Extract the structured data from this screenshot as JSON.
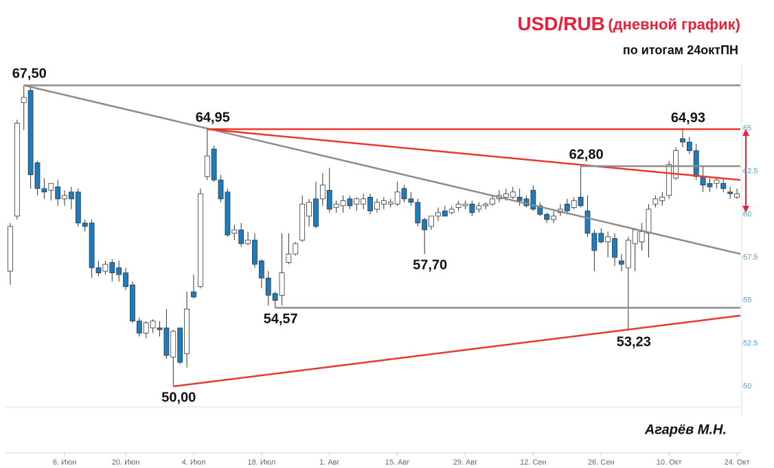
{
  "chart_data": {
    "type": "candlestick",
    "title": "USD/RUB",
    "title_note": "(дневной график)",
    "subtitle": "по итогам 24октПН",
    "author": "Агарёв М.Н.",
    "categories": [
      null,
      null,
      null,
      null,
      null,
      null,
      null,
      null,
      "6. Июн",
      null,
      null,
      null,
      null,
      null,
      null,
      null,
      null,
      "20. Июн",
      null,
      null,
      null,
      null,
      null,
      null,
      null,
      null,
      null,
      "4. Июл",
      null,
      null,
      null,
      null,
      null,
      null,
      null,
      null,
      null,
      "18. Июл",
      null,
      null,
      null,
      null,
      null,
      null,
      null,
      null,
      null,
      "1. Авг",
      null,
      null,
      null,
      null,
      null,
      null,
      null,
      null,
      null,
      "15. Авг",
      null,
      null,
      null,
      null,
      null,
      null,
      null,
      null,
      null,
      "29. Авг",
      null,
      null,
      null,
      null,
      null,
      null,
      null,
      null,
      null,
      "12. Сен",
      null,
      null,
      null,
      null,
      null,
      null,
      null,
      null,
      null,
      "26. Сен",
      null,
      null,
      null,
      null,
      null,
      null,
      null,
      null,
      null,
      "10. Окт",
      null,
      null,
      null,
      null,
      null,
      null,
      null,
      null,
      null,
      "24. Окт"
    ],
    "open": [
      56.7,
      59.9,
      66.5,
      67.2,
      63.0,
      61.5,
      61.4,
      61.6,
      60.9,
      61.3,
      61.3,
      59.5,
      59.5,
      56.9,
      56.7,
      57.2,
      56.9,
      56.6,
      55.9,
      53.8,
      53.1,
      53.4,
      53.4,
      53.4,
      51.7,
      53.4,
      51.9,
      55.5,
      55.8,
      62.2,
      63.8,
      62.0,
      61.3,
      58.9,
      59.1,
      58.3,
      58.5,
      57.3,
      56.3,
      55.4,
      55.3,
      57.2,
      57.7,
      58.5,
      59.9,
      60.9,
      60.9,
      61.4,
      60.4,
      60.5,
      60.9,
      60.6,
      60.6,
      61.0,
      60.3,
      60.6,
      60.6,
      60.6,
      61.5,
      60.9,
      60.7,
      59.7,
      59.3,
      59.9,
      60.2,
      60.1,
      60.4,
      60.5,
      60.6,
      60.3,
      60.5,
      60.6,
      60.9,
      61.0,
      61.0,
      61.0,
      60.9,
      61.4,
      60.5,
      60.0,
      59.7,
      60.1,
      60.6,
      60.4,
      61.0,
      60.2,
      58.9,
      58.9,
      58.4,
      58.6,
      57.3,
      56.9,
      58.3,
      58.4,
      58.9,
      60.6,
      60.8,
      61.1,
      62.1,
      64.4,
      64.2,
      63.7,
      62.2,
      61.8,
      61.8,
      61.8,
      61.3,
      61.0
    ],
    "high": [
      59.5,
      65.5,
      67.5,
      67.5,
      63.1,
      62.1,
      61.8,
      62.0,
      61.4,
      61.6,
      61.5,
      59.7,
      59.7,
      57.3,
      57.3,
      57.4,
      57.3,
      56.9,
      56.1,
      54.0,
      53.8,
      53.9,
      53.8,
      54.5,
      53.3,
      53.4,
      55.5,
      56.5,
      61.5,
      64.95,
      64.0,
      62.3,
      61.5,
      59.4,
      59.5,
      59.0,
      58.9,
      57.4,
      56.7,
      55.5,
      58.9,
      58.9,
      58.4,
      61.1,
      60.9,
      61.9,
      62.4,
      62.7,
      60.8,
      61.1,
      61.1,
      61.0,
      61.2,
      61.2,
      60.9,
      61.0,
      60.9,
      61.9,
      61.7,
      61.3,
      60.9,
      59.8,
      59.9,
      60.4,
      60.5,
      60.5,
      60.8,
      60.8,
      60.8,
      60.7,
      60.7,
      61.1,
      61.4,
      61.5,
      61.6,
      61.5,
      61.1,
      61.7,
      60.7,
      60.1,
      60.2,
      60.6,
      60.9,
      61.0,
      62.8,
      61.1,
      59.1,
      59.2,
      59.0,
      58.9,
      57.7,
      58.7,
      59.2,
      59.5,
      60.6,
      61.1,
      61.3,
      63.1,
      63.9,
      64.93,
      64.5,
      64.1,
      62.8,
      62.1,
      62.1,
      62.1,
      61.6,
      61.5
    ],
    "low": [
      55.9,
      59.7,
      64.9,
      61.5,
      61.1,
      60.9,
      60.8,
      60.5,
      60.5,
      60.3,
      59.3,
      59.0,
      56.3,
      56.4,
      56.5,
      56.1,
      56.1,
      55.6,
      53.7,
      52.9,
      52.8,
      53.1,
      52.9,
      51.6,
      50.0,
      51.3,
      51.1,
      55.1,
      55.7,
      62.0,
      61.9,
      60.7,
      58.7,
      58.5,
      58.1,
      58.2,
      56.9,
      55.7,
      54.7,
      54.57,
      54.7,
      57.1,
      57.6,
      58.4,
      59.3,
      59.2,
      60.5,
      60.1,
      60.1,
      60.1,
      60.3,
      60.2,
      60.3,
      60.0,
      60.1,
      60.3,
      60.4,
      60.5,
      60.7,
      60.5,
      59.3,
      57.7,
      59.1,
      59.6,
      59.9,
      60.0,
      60.2,
      60.3,
      59.9,
      60.1,
      60.3,
      60.5,
      60.7,
      60.8,
      60.9,
      60.5,
      60.4,
      60.2,
      59.9,
      59.5,
      59.5,
      59.9,
      60.0,
      60.3,
      60.4,
      58.7,
      56.7,
      58.3,
      57.5,
      57.0,
      56.7,
      53.23,
      56.7,
      57.9,
      57.5,
      60.4,
      60.5,
      60.9,
      62.0,
      63.9,
      63.5,
      62.0,
      61.3,
      61.3,
      61.5,
      61.3,
      60.9,
      60.9
    ],
    "close": [
      59.3,
      65.3,
      66.8,
      62.3,
      61.5,
      61.3,
      61.8,
      60.9,
      61.1,
      60.9,
      59.5,
      59.3,
      56.9,
      56.6,
      57.1,
      56.6,
      56.5,
      55.8,
      53.8,
      53.1,
      53.7,
      53.8,
      53.3,
      51.8,
      53.2,
      51.4,
      54.5,
      55.2,
      61.2,
      63.4,
      62.0,
      60.9,
      58.8,
      59.1,
      58.3,
      58.5,
      57.1,
      56.3,
      55.3,
      55.0,
      56.6,
      57.7,
      58.3,
      60.6,
      60.7,
      59.3,
      61.7,
      60.3,
      60.6,
      60.8,
      60.5,
      60.9,
      60.9,
      60.2,
      60.7,
      60.8,
      60.7,
      61.3,
      60.9,
      60.7,
      59.5,
      59.1,
      59.9,
      60.1,
      59.9,
      60.3,
      60.6,
      60.6,
      60.1,
      60.5,
      60.6,
      60.9,
      61.1,
      61.2,
      61.3,
      60.8,
      60.5,
      60.3,
      60.0,
      59.7,
      59.9,
      60.3,
      60.2,
      60.8,
      60.5,
      58.9,
      57.9,
      58.4,
      58.7,
      57.5,
      57.1,
      58.5,
      59.1,
      59.0,
      60.3,
      60.9,
      61.0,
      62.9,
      63.7,
      64.2,
      63.7,
      62.2,
      61.7,
      61.6,
      62.0,
      61.5,
      61.2,
      61.2
    ],
    "up_color": "#ffffff",
    "down_color": "#1b7cc0",
    "ylim": [
      48.53,
      68.47
    ],
    "yticks": [
      50,
      52.5,
      55,
      57.5,
      60,
      62.5,
      65
    ],
    "trendlines": [
      {
        "color": "#8c8c8c",
        "from": [
          2,
          67.5
        ],
        "to": [
          107.5,
          67.5
        ]
      },
      {
        "color": "#8c8c8c",
        "from": [
          2,
          67.5
        ],
        "to": [
          107.5,
          57.7
        ]
      },
      {
        "color": "#e8372c",
        "from": [
          29,
          64.95
        ],
        "to": [
          107.5,
          64.95
        ]
      },
      {
        "color": "#e8372c",
        "from": [
          29,
          64.95
        ],
        "to": [
          107.5,
          62.0
        ]
      },
      {
        "color": "#8c8c8c",
        "from": [
          84,
          62.8
        ],
        "to": [
          107.5,
          62.8
        ]
      },
      {
        "color": "#8c8c8c",
        "from": [
          39,
          54.57
        ],
        "to": [
          107.5,
          54.57
        ]
      },
      {
        "color": "#e8372c",
        "from": [
          24,
          50.0
        ],
        "to": [
          107.5,
          54.12
        ]
      }
    ],
    "annotations": [
      {
        "label": "67,50",
        "value": 67.5,
        "at": 2
      },
      {
        "label": "64,95",
        "value": 64.95,
        "at": 29
      },
      {
        "label": "62,80",
        "value": 62.8,
        "at": 84
      },
      {
        "label": "64,93",
        "value": 64.93,
        "at": 99
      },
      {
        "label": "57,70",
        "value": 57.7,
        "at": 61
      },
      {
        "label": "54,57",
        "value": 54.57,
        "at": 39
      },
      {
        "label": "50,00",
        "value": 50.0,
        "at": 24
      },
      {
        "label": "53,23",
        "value": 53.23,
        "at": 91
      }
    ]
  }
}
